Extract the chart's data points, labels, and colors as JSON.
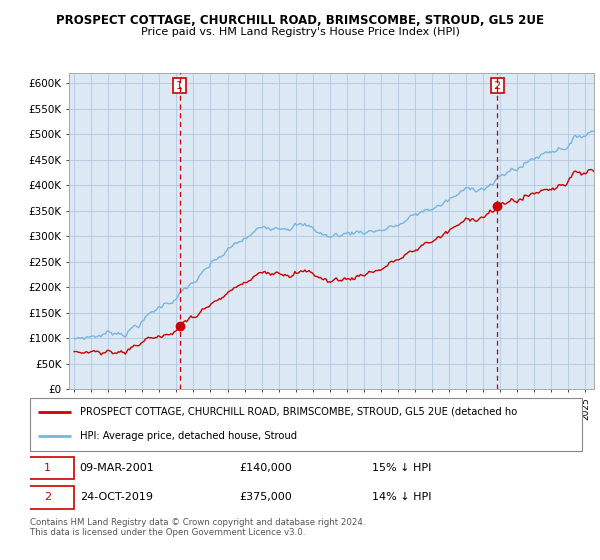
{
  "title": "PROSPECT COTTAGE, CHURCHILL ROAD, BRIMSCOMBE, STROUD, GL5 2UE",
  "subtitle": "Price paid vs. HM Land Registry's House Price Index (HPI)",
  "ylim": [
    0,
    620000
  ],
  "yticks": [
    0,
    50000,
    100000,
    150000,
    200000,
    250000,
    300000,
    350000,
    400000,
    450000,
    500000,
    550000,
    600000
  ],
  "sale1_date_num": 2001.19,
  "sale1_price": 140000,
  "sale2_date_num": 2019.82,
  "sale2_price": 375000,
  "legend_line1": "PROSPECT COTTAGE, CHURCHILL ROAD, BRIMSCOMBE, STROUD, GL5 2UE (detached ho",
  "legend_line2": "HPI: Average price, detached house, Stroud",
  "hpi_color": "#7ab5e0",
  "sale_color": "#cc0000",
  "footer": "Contains HM Land Registry data © Crown copyright and database right 2024.\nThis data is licensed under the Open Government Licence v3.0.",
  "background_color": "#ffffff",
  "plot_bg_color": "#dce9f5",
  "grid_color": "#b0c8e0"
}
